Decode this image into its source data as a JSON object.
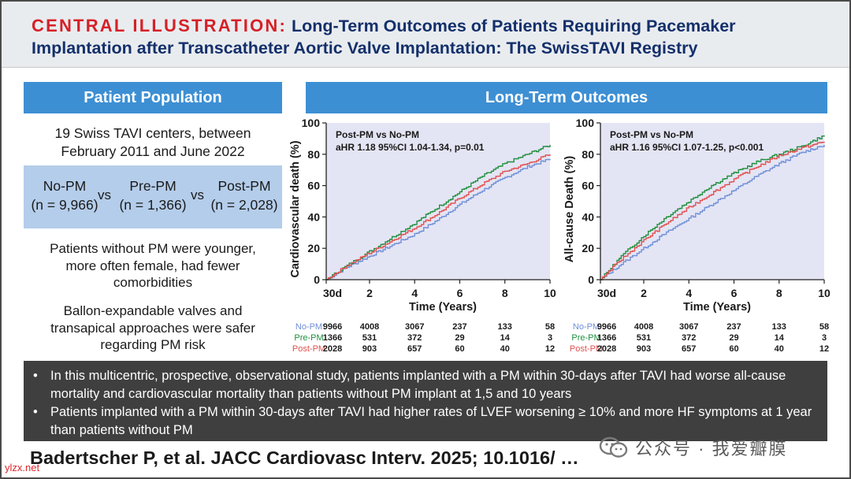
{
  "header": {
    "label": "CENTRAL ILLUSTRATION:",
    "title_line1": "Long-Term Outcomes of Patients Requiring Pacemaker",
    "title_line2": "Implantation after Transcatheter Aortic Valve Implantation: The SwissTAVI Registry"
  },
  "left": {
    "banner": "Patient Population",
    "centers_line1": "19 Swiss TAVI centers, between",
    "centers_line2": "February 2011 and June 2022",
    "groups": [
      {
        "name": "No-PM",
        "n": "(n = 9,966)"
      },
      {
        "name": "Pre-PM",
        "n": "(n = 1,366)"
      },
      {
        "name": "Post-PM",
        "n": "(n = 2,028)"
      }
    ],
    "vs": "vs",
    "note1": [
      "Patients without PM were younger,",
      "more often female, had fewer",
      "comorbidities"
    ],
    "note2": [
      "Ballon-expandable valves and",
      "transapical approaches were safer",
      "regarding PM risk"
    ]
  },
  "right": {
    "banner": "Long-Term Outcomes"
  },
  "chart_data": [
    {
      "type": "line",
      "ylabel": "Cardiovascular death (%)",
      "xlabel": "Time (Years)",
      "annotation_line1": "Post-PM vs No-PM",
      "annotation_line2": "aHR 1.18 95%CI 1.04-1.34, p=0.01",
      "ylim": [
        0,
        100
      ],
      "xlim": [
        0.08,
        10
      ],
      "x_ticks": [
        "30d",
        "2",
        "4",
        "6",
        "8",
        "10"
      ],
      "y_ticks": [
        "0",
        "20",
        "40",
        "60",
        "80",
        "100"
      ],
      "x": [
        0.08,
        1,
        2,
        3,
        4,
        5,
        6,
        7,
        8,
        9,
        10
      ],
      "series": [
        {
          "name": "No-PM",
          "color": "#6f8fd8",
          "values": [
            0,
            8,
            15,
            22,
            29,
            38,
            48,
            57,
            65,
            72,
            77
          ],
          "at_risk": [
            "9966",
            "4008",
            "3067",
            "237",
            "133",
            "58"
          ]
        },
        {
          "name": "Pre-PM",
          "color": "#1e8f3e",
          "values": [
            0,
            9,
            18,
            27,
            36,
            46,
            56,
            66,
            74,
            80,
            86
          ],
          "at_risk": [
            "1366",
            "531",
            "372",
            "29",
            "14",
            "3"
          ]
        },
        {
          "name": "Post-PM",
          "color": "#e15050",
          "values": [
            0,
            9,
            17,
            25,
            33,
            42,
            52,
            61,
            69,
            74,
            80
          ],
          "at_risk": [
            "2028",
            "903",
            "657",
            "60",
            "40",
            "12"
          ]
        }
      ]
    },
    {
      "type": "line",
      "ylabel": "All-cause Death (%)",
      "xlabel": "Time (Years)",
      "annotation_line1": "Post-PM vs No-PM",
      "annotation_line2": "aHR 1.16 95%CI 1.07-1.25, p<0.001",
      "ylim": [
        0,
        100
      ],
      "xlim": [
        0.08,
        10
      ],
      "x_ticks": [
        "30d",
        "2",
        "4",
        "6",
        "8",
        "10"
      ],
      "y_ticks": [
        "0",
        "20",
        "40",
        "60",
        "80",
        "100"
      ],
      "x": [
        0.08,
        1,
        2,
        3,
        4,
        5,
        6,
        7,
        8,
        9,
        10
      ],
      "series": [
        {
          "name": "No-PM",
          "color": "#6f8fd8",
          "values": [
            0,
            10,
            20,
            30,
            39,
            48,
            57,
            66,
            74,
            81,
            86
          ],
          "at_risk": [
            "9966",
            "4008",
            "3067",
            "237",
            "133",
            "58"
          ]
        },
        {
          "name": "Pre-PM",
          "color": "#1e8f3e",
          "values": [
            0,
            15,
            28,
            40,
            50,
            60,
            68,
            75,
            80,
            85,
            92
          ],
          "at_risk": [
            "1366",
            "531",
            "372",
            "29",
            "14",
            "3"
          ]
        },
        {
          "name": "Post-PM",
          "color": "#e15050",
          "values": [
            0,
            13,
            25,
            36,
            46,
            55,
            64,
            72,
            79,
            84,
            88
          ],
          "at_risk": [
            "2028",
            "903",
            "657",
            "60",
            "40",
            "12"
          ]
        }
      ]
    }
  ],
  "bullets": [
    "In this multicentric, prospective, observational study, patients implanted with a PM within 30-days after TAVI had worse all-cause mortality and cardiovascular mortality than patients without PM implant at 1,5 and 10 years",
    "Patients implanted with a PM within 30-days after TAVI had higher rates of LVEF worsening ≥ 10% and more HF symptoms at 1 year than patients without PM"
  ],
  "bullet_mark": "•",
  "citation": "Badertscher P, et al. JACC Cardiovasc Interv. 2025; 10.1016/ …",
  "watermark": "公众号 · 我爱瓣膜",
  "site": "ylzx.net"
}
